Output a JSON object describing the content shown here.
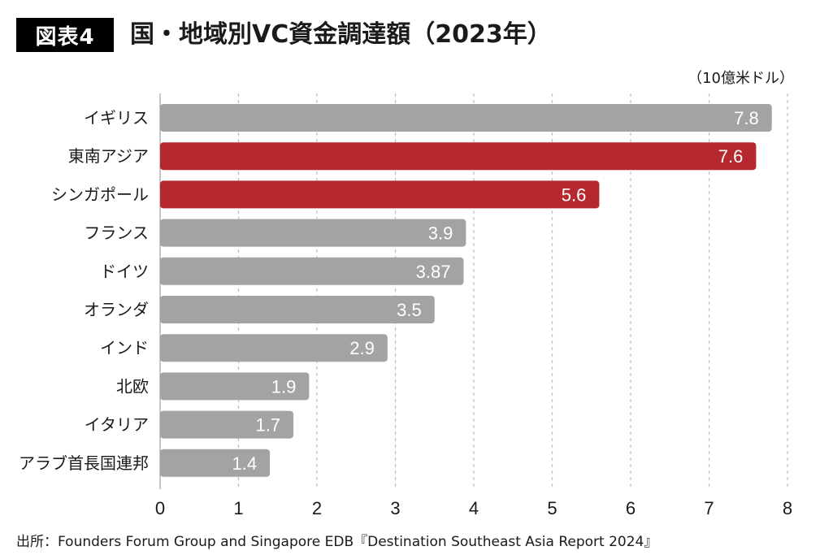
{
  "figure_tag": "図表4",
  "unit": "（10億米ドル）",
  "source": "出所：Founders Forum Group and Singapore EDB『Destination Southeast Asia Report 2024』",
  "colors": {
    "highlight": "#b5282e",
    "default": "#a3a3a3",
    "grid": "#bdbdbd"
  },
  "chart_data": {
    "type": "bar",
    "orientation": "horizontal",
    "title": "国・地域別VC資金調達額（2023年）",
    "categories": [
      "イギリス",
      "東南アジア",
      "シンガポール",
      "フランス",
      "ドイツ",
      "オランダ",
      "インド",
      "北欧",
      "イタリア",
      "アラブ首長国連邦"
    ],
    "values": [
      7.8,
      7.6,
      5.6,
      3.9,
      3.87,
      3.5,
      2.9,
      1.9,
      1.7,
      1.4
    ],
    "value_labels": [
      "7.8",
      "7.6",
      "5.6",
      "3.9",
      "3.87",
      "3.5",
      "2.9",
      "1.9",
      "1.7",
      "1.4"
    ],
    "highlighted": [
      false,
      true,
      true,
      false,
      false,
      false,
      false,
      false,
      false,
      false
    ],
    "xlim": [
      0,
      8
    ],
    "xticks": [
      "0",
      "1",
      "2",
      "3",
      "4",
      "5",
      "6",
      "7",
      "8"
    ],
    "grid": true
  }
}
